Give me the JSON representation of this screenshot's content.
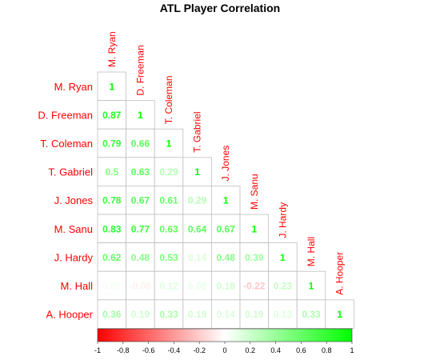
{
  "chart_data": {
    "type": "heatmap",
    "title": "ATL Player Correlation",
    "labels": [
      "M. Ryan",
      "D. Freeman",
      "T. Coleman",
      "T. Gabriel",
      "J. Jones",
      "M. Sanu",
      "J. Hardy",
      "M. Hall",
      "A. Hooper"
    ],
    "matrix_lower": [
      [
        "1"
      ],
      [
        "0.87",
        "1"
      ],
      [
        "0.79",
        "0.66",
        "1"
      ],
      [
        "0.5",
        "0.63",
        "0.29",
        "1"
      ],
      [
        "0.78",
        "0.67",
        "0.61",
        "0.29",
        "1"
      ],
      [
        "0.83",
        "0.77",
        "0.63",
        "0.64",
        "0.67",
        "1"
      ],
      [
        "0.62",
        "0.48",
        "0.53",
        "0.14",
        "0.48",
        "0.39",
        "1"
      ],
      [
        "0.05",
        "-0.06",
        "0.12",
        "0.08",
        "0.18",
        "-0.22",
        "0.23",
        "1"
      ],
      [
        "0.36",
        "0.19",
        "0.33",
        "0.19",
        "0.14",
        "0.19",
        "0.13",
        "0.33",
        "1"
      ]
    ],
    "color_scale": {
      "range": [
        -1,
        1
      ],
      "low_color": "#ff0000",
      "mid_color": "#ffffff",
      "high_color": "#00ff00",
      "ticks": [
        "-1",
        "-0.8",
        "-0.6",
        "-0.4",
        "-0.2",
        "0",
        "0.2",
        "0.4",
        "0.6",
        "0.8",
        "1"
      ]
    },
    "colors": {
      "label_color": "#ff0000",
      "cell_border": "#bfbfbf"
    }
  }
}
